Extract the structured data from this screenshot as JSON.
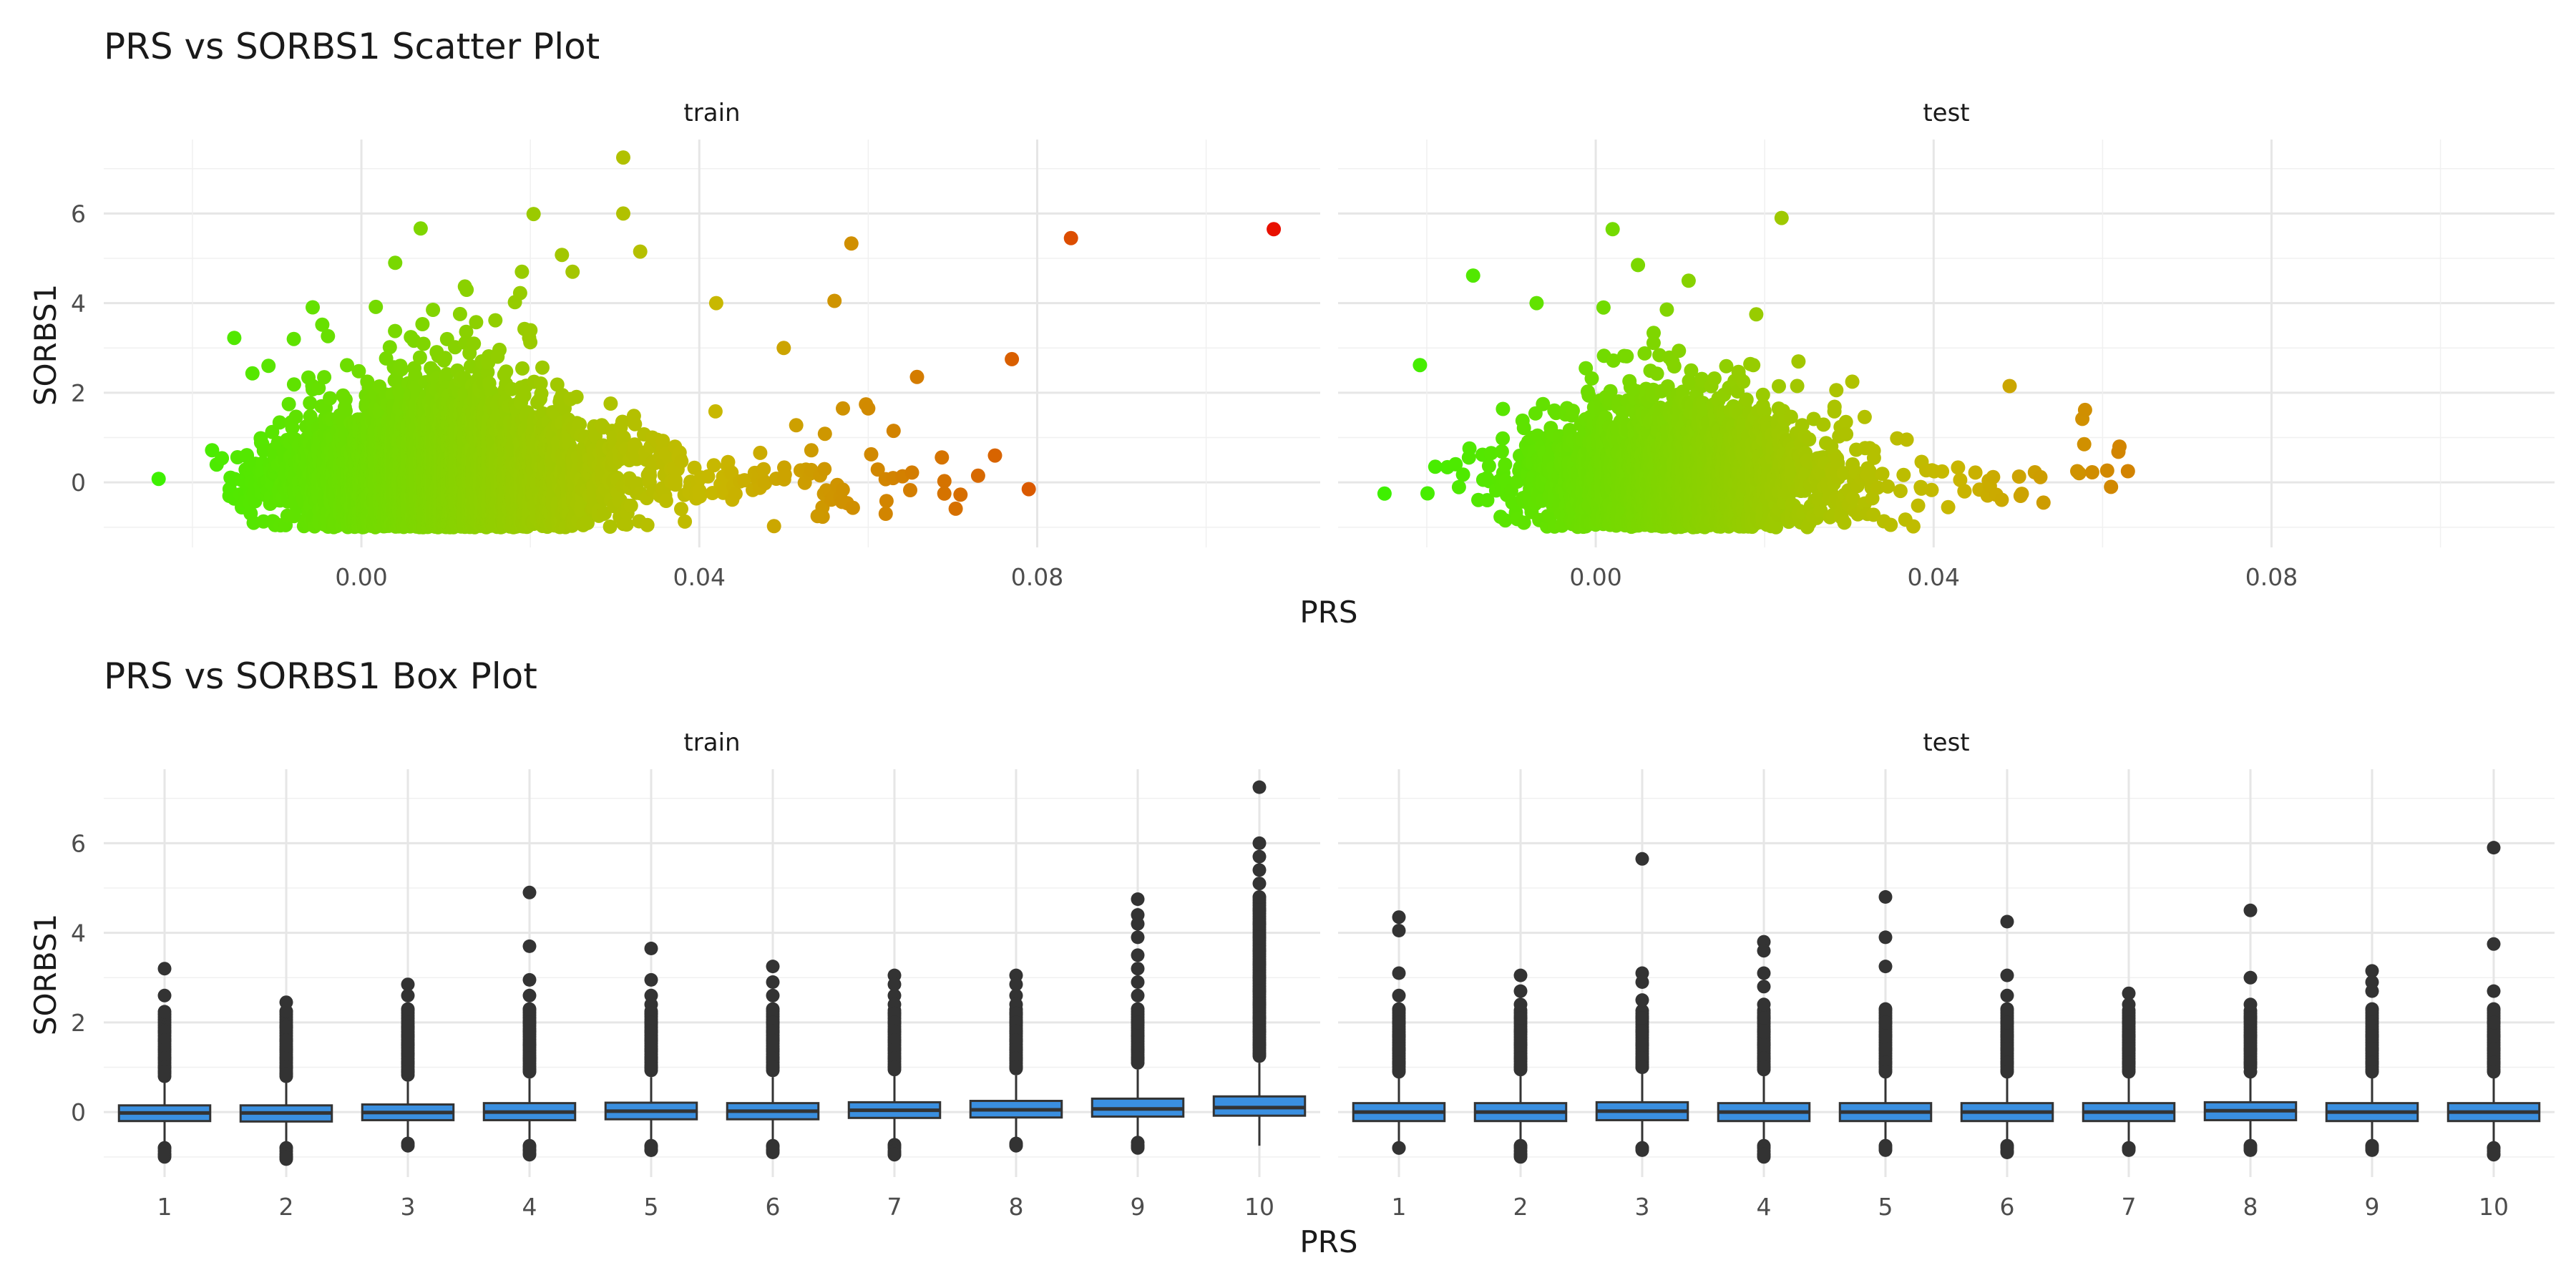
{
  "chart_data": [
    {
      "type": "scatter",
      "title": "PRS vs SORBS1 Scatter Plot",
      "xlabel": "PRS",
      "ylabel": "SORBS1",
      "facets": [
        "train",
        "test"
      ],
      "xlim": [
        -0.0305,
        0.1135
      ],
      "ylim": [
        -1.45,
        7.65
      ],
      "xticks": [
        "0.00",
        "0.04",
        "0.08"
      ],
      "yticks": [
        "0",
        "2",
        "4",
        "6"
      ],
      "grid": true,
      "color_scale": {
        "low": "#3ef000",
        "mid": "#c8b800",
        "high": "#e81000",
        "variable": "PRS"
      },
      "highlighted_points": {
        "train": [
          {
            "x": 0.031,
            "y": 7.25
          },
          {
            "x": 0.031,
            "y": 6.0
          },
          {
            "x": 0.033,
            "y": 5.15
          },
          {
            "x": 0.058,
            "y": 5.33
          },
          {
            "x": 0.084,
            "y": 5.45
          },
          {
            "x": 0.108,
            "y": 5.65
          },
          {
            "x": 0.077,
            "y": 2.75
          },
          {
            "x": 0.079,
            "y": -0.15
          },
          {
            "x": 0.075,
            "y": 0.6
          },
          {
            "x": 0.004,
            "y": 4.9
          },
          {
            "x": 0.042,
            "y": 4.0
          },
          {
            "x": 0.056,
            "y": 4.05
          },
          {
            "x": 0.05,
            "y": 3.0
          },
          {
            "x": 0.063,
            "y": 1.15
          },
          {
            "x": -0.024,
            "y": 0.08
          },
          {
            "x": -0.008,
            "y": 3.2
          },
          {
            "x": 0.057,
            "y": 1.65
          },
          {
            "x": 0.06,
            "y": 1.65
          },
          {
            "x": 0.073,
            "y": 0.15
          },
          {
            "x": 0.054,
            "y": -0.75
          },
          {
            "x": 0.069,
            "y": -0.25
          },
          {
            "x": -0.011,
            "y": 2.6
          },
          {
            "x": 0.019,
            "y": 4.7
          },
          {
            "x": 0.025,
            "y": 4.7
          }
        ],
        "test": [
          {
            "x": 0.002,
            "y": 5.65
          },
          {
            "x": 0.022,
            "y": 5.9
          },
          {
            "x": 0.005,
            "y": 4.85
          },
          {
            "x": 0.011,
            "y": 4.5
          },
          {
            "x": -0.007,
            "y": 4.0
          },
          {
            "x": 0.049,
            "y": 2.15
          },
          {
            "x": 0.062,
            "y": 0.8
          },
          {
            "x": -0.025,
            "y": -0.25
          },
          {
            "x": 0.063,
            "y": 0.25
          },
          {
            "x": 0.053,
            "y": -0.45
          },
          {
            "x": 0.024,
            "y": 2.7
          },
          {
            "x": 0.019,
            "y": 3.75
          },
          {
            "x": -0.019,
            "y": 0.35
          },
          {
            "x": 0.061,
            "y": -0.1
          },
          {
            "x": 0.057,
            "y": 0.25
          }
        ]
      },
      "cloud": {
        "train": {
          "n": 5200,
          "center_x": 0.009,
          "spread_x": 0.0085,
          "x_min": -0.022,
          "x_max": 0.072
        },
        "test": {
          "n": 2400,
          "center_x": 0.009,
          "spread_x": 0.0085,
          "x_min": -0.021,
          "x_max": 0.064
        }
      }
    },
    {
      "type": "box",
      "title": "PRS vs SORBS1 Box Plot",
      "xlabel": "PRS",
      "ylabel": "SORBS1",
      "facets": [
        "train",
        "test"
      ],
      "categories": [
        "1",
        "2",
        "3",
        "4",
        "5",
        "6",
        "7",
        "8",
        "9",
        "10"
      ],
      "ylim": [
        -1.45,
        7.65
      ],
      "yticks": [
        "0",
        "2",
        "4",
        "6"
      ],
      "grid": true,
      "box_fill": "#3a8fe0",
      "series": [
        {
          "facet": "train",
          "boxes": [
            {
              "q1": -0.2,
              "median": -0.02,
              "q3": 0.15,
              "whisker_low": -0.72,
              "whisker_high": 0.65,
              "outlier_low": -1.0,
              "outlier_max": 3.2,
              "outliers": [
                3.2,
                2.6,
                1.8,
                1.6,
                1.4,
                1.2,
                1.0,
                0.9,
                -0.8,
                -0.95,
                -1.0
              ]
            },
            {
              "q1": -0.21,
              "median": -0.02,
              "q3": 0.15,
              "whisker_low": -0.72,
              "whisker_high": 0.65,
              "outlier_low": -1.05,
              "outlier_max": 2.45,
              "outliers": [
                2.45,
                2.25,
                1.9,
                1.6,
                1.4,
                1.2,
                1.0,
                0.85,
                -0.8,
                -1.0,
                -1.05
              ]
            },
            {
              "q1": -0.18,
              "median": -0.01,
              "q3": 0.17,
              "whisker_low": -0.7,
              "whisker_high": 0.68,
              "outlier_low": -0.75,
              "outlier_max": 2.85,
              "outliers": [
                2.85,
                2.6,
                2.3,
                1.9,
                1.7,
                1.5,
                1.3,
                1.1,
                0.9,
                -0.7,
                -0.75
              ]
            },
            {
              "q1": -0.18,
              "median": 0.0,
              "q3": 0.2,
              "whisker_low": -0.7,
              "whisker_high": 0.75,
              "outlier_low": -0.95,
              "outlier_max": 4.9,
              "outliers": [
                4.9,
                3.7,
                2.95,
                2.6,
                2.3,
                2.0,
                1.8,
                1.5,
                1.2,
                0.95,
                -0.75,
                -0.85,
                -0.95
              ]
            },
            {
              "q1": -0.16,
              "median": 0.02,
              "q3": 0.21,
              "whisker_low": -0.7,
              "whisker_high": 0.78,
              "outlier_low": -0.85,
              "outlier_max": 3.65,
              "outliers": [
                3.65,
                2.95,
                2.6,
                2.4,
                2.2,
                2.0,
                1.8,
                1.6,
                1.4,
                1.2,
                1.0,
                -0.75,
                -0.85
              ]
            },
            {
              "q1": -0.16,
              "median": 0.02,
              "q3": 0.2,
              "whisker_low": -0.7,
              "whisker_high": 0.78,
              "outlier_low": -0.9,
              "outlier_max": 3.25,
              "outliers": [
                3.25,
                2.9,
                2.6,
                2.3,
                2.0,
                1.8,
                1.6,
                1.4,
                1.2,
                1.0,
                -0.75,
                -0.85,
                -0.9
              ]
            },
            {
              "q1": -0.13,
              "median": 0.04,
              "q3": 0.22,
              "whisker_low": -0.65,
              "whisker_high": 0.8,
              "outlier_low": -0.95,
              "outlier_max": 3.05,
              "outliers": [
                3.05,
                2.85,
                2.6,
                2.4,
                2.2,
                2.0,
                1.8,
                1.6,
                1.4,
                1.2,
                1.0,
                -0.75,
                -0.9,
                -0.95
              ]
            },
            {
              "q1": -0.12,
              "median": 0.05,
              "q3": 0.25,
              "whisker_low": -0.65,
              "whisker_high": 0.82,
              "outlier_low": -0.75,
              "outlier_max": 3.05,
              "outliers": [
                3.05,
                2.85,
                2.6,
                2.4,
                2.2,
                2.0,
                1.8,
                1.6,
                1.4,
                1.2,
                1.0,
                -0.7,
                -0.75
              ]
            },
            {
              "q1": -0.1,
              "median": 0.07,
              "q3": 0.3,
              "whisker_low": -0.6,
              "whisker_high": 0.95,
              "outlier_low": -0.8,
              "outlier_max": 4.75,
              "outliers": [
                4.75,
                4.4,
                4.2,
                3.9,
                3.5,
                3.2,
                2.9,
                2.6,
                2.3,
                2.0,
                1.7,
                1.4,
                1.2,
                -0.75,
                -0.8
              ]
            },
            {
              "q1": -0.08,
              "median": 0.1,
              "q3": 0.35,
              "whisker_low": -0.75,
              "whisker_high": 1.1,
              "outlier_low": -0.75,
              "outlier_max": 7.25,
              "outliers": [
                7.25,
                6.0,
                5.7,
                5.4,
                5.1,
                4.8,
                4.5,
                4.2,
                3.9,
                3.6,
                3.3,
                3.0,
                2.7,
                2.4,
                2.1,
                1.8,
                1.5,
                1.3
              ]
            }
          ]
        },
        {
          "facet": "test",
          "boxes": [
            {
              "q1": -0.2,
              "median": 0.0,
              "q3": 0.2,
              "whisker_low": -0.72,
              "whisker_high": 0.8,
              "outlier_low": -0.8,
              "outlier_max": 4.35,
              "outliers": [
                4.35,
                4.05,
                3.1,
                2.6,
                2.3,
                2.0,
                1.7,
                1.4,
                1.1,
                0.9,
                -0.8
              ]
            },
            {
              "q1": -0.2,
              "median": 0.0,
              "q3": 0.2,
              "whisker_low": -0.72,
              "whisker_high": 0.8,
              "outlier_low": -1.0,
              "outlier_max": 3.05,
              "outliers": [
                3.05,
                2.7,
                2.4,
                2.1,
                1.8,
                1.5,
                1.2,
                1.0,
                -0.75,
                -0.95,
                -1.0
              ]
            },
            {
              "q1": -0.18,
              "median": 0.02,
              "q3": 0.22,
              "whisker_low": -0.72,
              "whisker_high": 0.85,
              "outlier_low": -0.85,
              "outlier_max": 5.65,
              "outliers": [
                5.65,
                3.1,
                2.9,
                2.5,
                2.1,
                1.8,
                1.5,
                1.2,
                1.0,
                -0.8,
                -0.85
              ]
            },
            {
              "q1": -0.2,
              "median": 0.0,
              "q3": 0.2,
              "whisker_low": -0.72,
              "whisker_high": 0.8,
              "outlier_low": -1.0,
              "outlier_max": 3.8,
              "outliers": [
                3.8,
                3.6,
                3.1,
                2.8,
                2.4,
                2.1,
                1.8,
                1.5,
                1.2,
                1.0,
                -0.75,
                -0.95,
                -1.0
              ]
            },
            {
              "q1": -0.2,
              "median": 0.0,
              "q3": 0.2,
              "whisker_low": -0.72,
              "whisker_high": 0.8,
              "outlier_low": -0.85,
              "outlier_max": 4.8,
              "outliers": [
                4.8,
                3.9,
                3.25,
                2.3,
                2.0,
                1.7,
                1.4,
                1.1,
                0.9,
                -0.75,
                -0.85
              ]
            },
            {
              "q1": -0.2,
              "median": 0.0,
              "q3": 0.2,
              "whisker_low": -0.72,
              "whisker_high": 0.8,
              "outlier_low": -0.9,
              "outlier_max": 4.25,
              "outliers": [
                4.25,
                3.05,
                2.6,
                2.3,
                2.0,
                1.7,
                1.4,
                1.1,
                0.9,
                -0.75,
                -0.9
              ]
            },
            {
              "q1": -0.2,
              "median": 0.0,
              "q3": 0.2,
              "whisker_low": -0.72,
              "whisker_high": 0.8,
              "outlier_low": -0.85,
              "outlier_max": 2.65,
              "outliers": [
                2.65,
                2.4,
                2.0,
                1.7,
                1.4,
                1.1,
                0.9,
                -0.8,
                -0.85
              ]
            },
            {
              "q1": -0.18,
              "median": 0.03,
              "q3": 0.22,
              "whisker_low": -0.72,
              "whisker_high": 0.85,
              "outlier_low": -0.85,
              "outlier_max": 4.5,
              "outliers": [
                4.5,
                3.0,
                2.4,
                2.1,
                1.7,
                1.4,
                1.1,
                0.9,
                -0.75,
                -0.85
              ]
            },
            {
              "q1": -0.2,
              "median": 0.0,
              "q3": 0.2,
              "whisker_low": -0.72,
              "whisker_high": 0.8,
              "outlier_low": -0.85,
              "outlier_max": 3.15,
              "outliers": [
                3.15,
                2.9,
                2.7,
                2.3,
                1.7,
                1.4,
                1.1,
                0.9,
                -0.75,
                -0.85
              ]
            },
            {
              "q1": -0.2,
              "median": 0.0,
              "q3": 0.2,
              "whisker_low": -0.72,
              "whisker_high": 0.8,
              "outlier_low": -0.95,
              "outlier_max": 5.9,
              "outliers": [
                5.9,
                3.75,
                2.7,
                2.3,
                2.0,
                1.7,
                1.4,
                1.1,
                0.9,
                -0.8,
                -0.95
              ]
            }
          ]
        }
      ]
    }
  ]
}
